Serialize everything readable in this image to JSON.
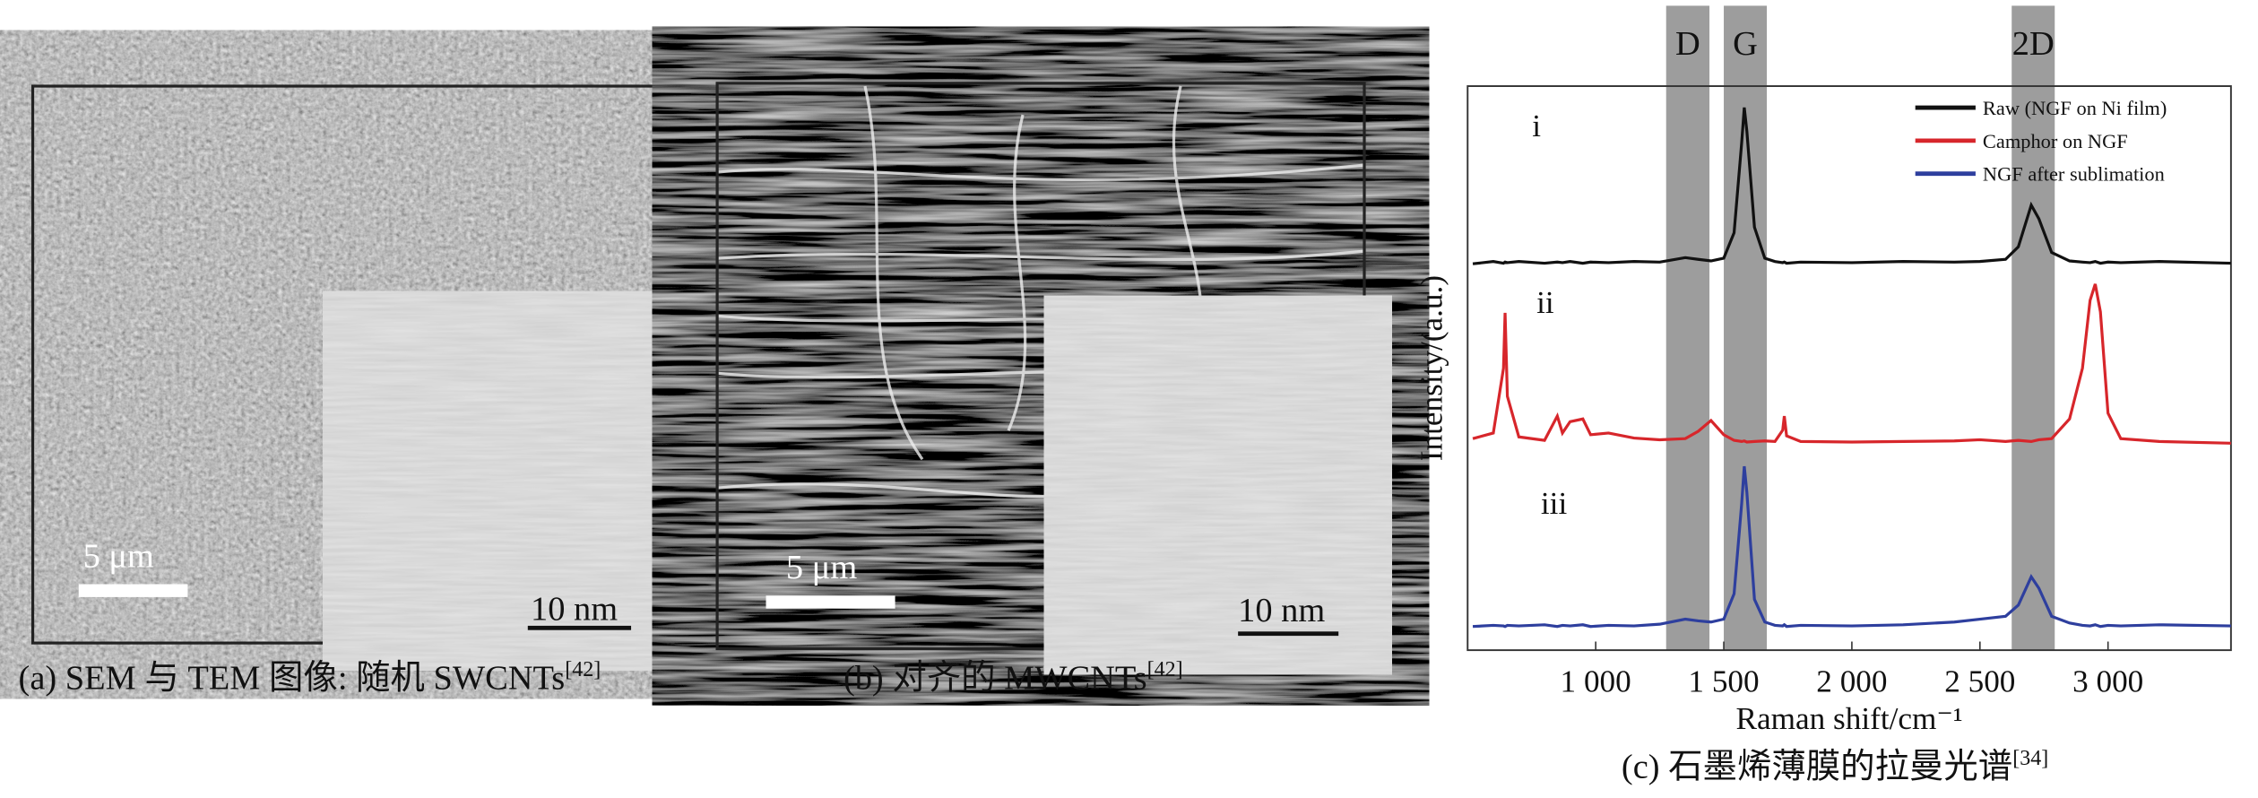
{
  "panel_a": {
    "caption": "(a) SEM 与 TEM 图像: 随机 SWCNTs",
    "caption_ref": "[42]",
    "scale_bar": "5 μm",
    "inset_scale_bar": "10 nm"
  },
  "panel_b": {
    "caption": "(b) 对齐的 MWCNTs",
    "caption_ref": "[42]",
    "scale_bar": "5 μm",
    "inset_scale_bar": "10 nm"
  },
  "chart_data": {
    "type": "line",
    "caption": "(c) 石墨烯薄膜的拉曼光谱",
    "caption_ref": "[34]",
    "x_label": "Raman shift/cm⁻¹",
    "y_label": "Intensity/(a.u.)",
    "xlim": [
      500,
      3480
    ],
    "ylim": [
      0,
      100
    ],
    "xticks": [
      {
        "value": 1000,
        "label": "1 000"
      },
      {
        "value": 1500,
        "label": "1 500"
      },
      {
        "value": 2000,
        "label": "2 000"
      },
      {
        "value": 2500,
        "label": "2 500"
      },
      {
        "value": 3000,
        "label": "3 000"
      }
    ],
    "bands": [
      {
        "name": "D",
        "range": [
          1275,
          1444
        ]
      },
      {
        "name": "G",
        "range": [
          1500,
          1668
        ]
      },
      {
        "name": "2D",
        "range": [
          2624,
          2792
        ]
      }
    ],
    "legend": "upper right",
    "x": [
      520,
      600,
      640,
      646,
      655,
      700,
      800,
      850,
      870,
      900,
      950,
      980,
      1050,
      1150,
      1250,
      1350,
      1400,
      1450,
      1500,
      1540,
      1570,
      1580,
      1590,
      1620,
      1660,
      1700,
      1730,
      1736,
      1745,
      1800,
      2000,
      2200,
      2400,
      2500,
      2600,
      2650,
      2700,
      2730,
      2780,
      2850,
      2900,
      2930,
      2950,
      2970,
      3000,
      3050,
      3200,
      3480
    ],
    "series": [
      {
        "name": "Raw (NGF on Ni film)",
        "label": "i",
        "color": "#111111",
        "values": [
          68.5,
          68.9,
          68.6,
          68.8,
          68.7,
          68.9,
          68.6,
          68.8,
          68.7,
          68.9,
          68.6,
          68.8,
          68.7,
          68.9,
          68.8,
          69.6,
          69.3,
          69.0,
          69.5,
          74,
          90,
          96.2,
          92,
          75,
          69.5,
          68.9,
          68.7,
          68.8,
          68.6,
          68.8,
          68.7,
          68.9,
          68.8,
          68.9,
          69.3,
          71.5,
          78.9,
          76.5,
          70.5,
          69.0,
          68.8,
          68.7,
          68.9,
          68.6,
          68.8,
          68.7,
          68.9,
          68.6
        ]
      },
      {
        "name": "Camphor on NGF",
        "label": "ii",
        "color": "#d7262b",
        "values": [
          37.5,
          38.5,
          50,
          59.8,
          45,
          37.8,
          37.2,
          41.5,
          38.5,
          40.5,
          41,
          38.2,
          38.5,
          37.6,
          37.3,
          37.5,
          38.8,
          40.7,
          38.2,
          37.2,
          37.0,
          37.1,
          36.9,
          37.0,
          37.1,
          37.0,
          39,
          41.5,
          38,
          37.0,
          36.9,
          37.0,
          37.1,
          37.3,
          37.0,
          37.2,
          37.0,
          37.3,
          37.5,
          41,
          50,
          62,
          64.9,
          60,
          42,
          37.5,
          37.0,
          36.7
        ]
      },
      {
        "name": "NGF after sublimation",
        "label": "iii",
        "color": "#2e3f9e",
        "values": [
          4.2,
          4.4,
          4.3,
          4.2,
          4.4,
          4.3,
          4.5,
          4.2,
          4.4,
          4.3,
          4.5,
          4.2,
          4.4,
          4.3,
          4.6,
          5.5,
          5.2,
          5.0,
          5.5,
          10,
          26,
          32.6,
          28,
          9,
          5.0,
          4.4,
          4.3,
          4.5,
          4.2,
          4.4,
          4.3,
          4.5,
          5.0,
          5.5,
          6,
          8,
          13.0,
          11,
          6,
          4.8,
          4.4,
          4.3,
          4.5,
          4.2,
          4.4,
          4.3,
          4.5,
          4.3
        ]
      }
    ]
  }
}
